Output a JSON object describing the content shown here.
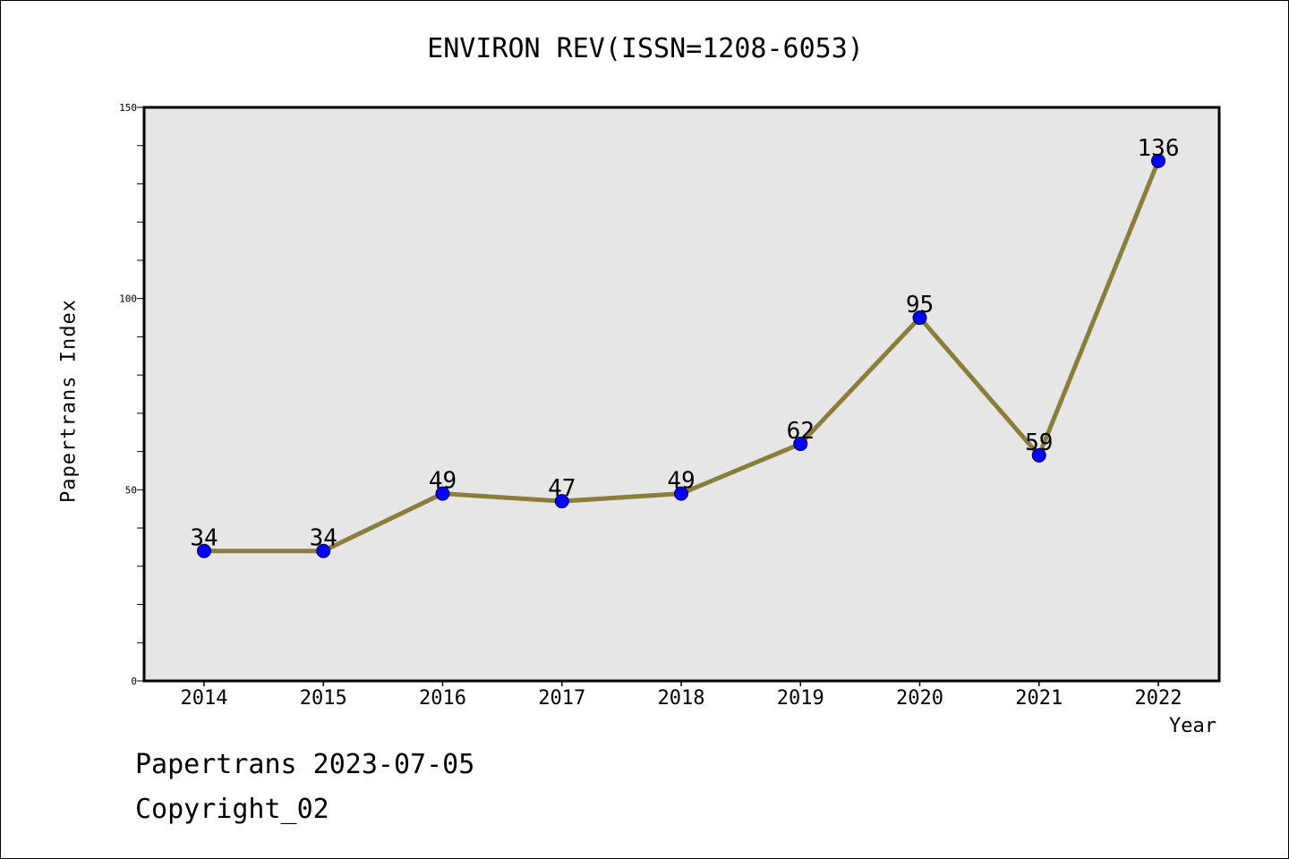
{
  "chart_data": {
    "type": "line",
    "title": "ENVIRON REV(ISSN=1208-6053)",
    "xlabel": "Year",
    "ylabel": "Papertrans Index",
    "categories": [
      "2014",
      "2015",
      "2016",
      "2017",
      "2018",
      "2019",
      "2020",
      "2021",
      "2022"
    ],
    "series": [
      {
        "values": [
          34,
          34,
          49,
          47,
          49,
          62,
          95,
          59,
          136
        ]
      }
    ],
    "ylim": [
      0,
      150
    ],
    "yticks": [
      "0",
      "50",
      "100",
      "150"
    ],
    "grid": false,
    "line_color": "#8b7d3a",
    "marker_color": "#0000ff",
    "plot_background": "#e6e6e6"
  },
  "footer": {
    "date_text": "Papertrans 2023-07-05",
    "copyright_text": "Copyright_02"
  }
}
